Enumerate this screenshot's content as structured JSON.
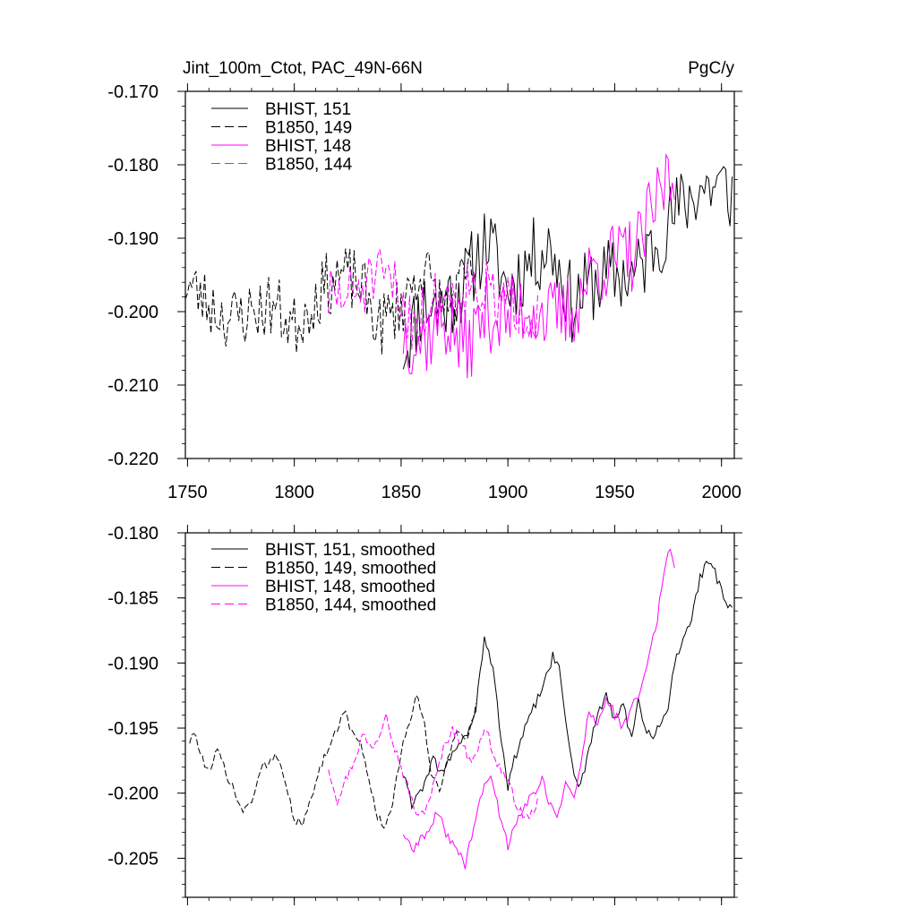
{
  "chart_data": [
    {
      "type": "line",
      "title": "Jint_100m_Ctot, PAC_49N-66N",
      "units": "PgC/y",
      "xlabel": "",
      "ylabel": "",
      "xlim": [
        1749,
        2006
      ],
      "ylim": [
        -0.22,
        -0.17
      ],
      "xticks": [
        1750,
        1800,
        1850,
        1900,
        1950,
        2000
      ],
      "xticklabels": [
        "1750",
        "1800",
        "1850",
        "1900",
        "1950",
        "2000"
      ],
      "yticks": [
        -0.22,
        -0.21,
        -0.2,
        -0.19,
        -0.18,
        -0.17
      ],
      "yticklabels": [
        "-0.220",
        "-0.210",
        "-0.200",
        "-0.190",
        "-0.180",
        "-0.170"
      ],
      "legend": "top-left",
      "series": [
        {
          "name": "BHIST, 151",
          "color": "#000000",
          "dash": "solid",
          "x_start": 1851,
          "x_end": 2005,
          "anchors": [
            [
              1851,
              -0.205
            ],
            [
              1860,
              -0.199
            ],
            [
              1870,
              -0.199
            ],
            [
              1880,
              -0.196
            ],
            [
              1890,
              -0.19
            ],
            [
              1900,
              -0.197
            ],
            [
              1910,
              -0.193
            ],
            [
              1920,
              -0.191
            ],
            [
              1930,
              -0.199
            ],
            [
              1940,
              -0.196
            ],
            [
              1950,
              -0.195
            ],
            [
              1960,
              -0.195
            ],
            [
              1970,
              -0.19
            ],
            [
              1980,
              -0.186
            ],
            [
              1990,
              -0.183
            ],
            [
              2000,
              -0.183
            ],
            [
              2005,
              -0.184
            ]
          ],
          "amp": 0.0055,
          "seed": 11
        },
        {
          "name": "B1850, 149",
          "color": "#000000",
          "dash": "dashed",
          "x_start": 1749,
          "x_end": 1885,
          "anchors": [
            [
              1749,
              -0.196
            ],
            [
              1760,
              -0.199
            ],
            [
              1770,
              -0.201
            ],
            [
              1780,
              -0.2
            ],
            [
              1790,
              -0.199
            ],
            [
              1800,
              -0.202
            ],
            [
              1810,
              -0.198
            ],
            [
              1820,
              -0.195
            ],
            [
              1830,
              -0.196
            ],
            [
              1840,
              -0.202
            ],
            [
              1850,
              -0.199
            ],
            [
              1860,
              -0.194
            ],
            [
              1870,
              -0.2
            ],
            [
              1880,
              -0.196
            ],
            [
              1885,
              -0.194
            ]
          ],
          "amp": 0.0045,
          "seed": 23
        },
        {
          "name": "BHIST, 148",
          "color": "#ff00ff",
          "dash": "solid",
          "x_start": 1851,
          "x_end": 1978,
          "anchors": [
            [
              1851,
              -0.203
            ],
            [
              1860,
              -0.204
            ],
            [
              1870,
              -0.201
            ],
            [
              1880,
              -0.205
            ],
            [
              1890,
              -0.2
            ],
            [
              1900,
              -0.201
            ],
            [
              1910,
              -0.199
            ],
            [
              1920,
              -0.201
            ],
            [
              1930,
              -0.2
            ],
            [
              1940,
              -0.194
            ],
            [
              1950,
              -0.193
            ],
            [
              1960,
              -0.192
            ],
            [
              1970,
              -0.185
            ],
            [
              1975,
              -0.181
            ],
            [
              1978,
              -0.183
            ]
          ],
          "amp": 0.0055,
          "seed": 37
        },
        {
          "name": "B1850, 144",
          "color": "#ff00ff",
          "dash": "dashed",
          "x_start": 1816,
          "x_end": 1914,
          "anchors": [
            [
              1816,
              -0.198
            ],
            [
              1825,
              -0.198
            ],
            [
              1835,
              -0.196
            ],
            [
              1845,
              -0.196
            ],
            [
              1855,
              -0.201
            ],
            [
              1865,
              -0.199
            ],
            [
              1875,
              -0.197
            ],
            [
              1885,
              -0.196
            ],
            [
              1895,
              -0.199
            ],
            [
              1905,
              -0.199
            ],
            [
              1914,
              -0.2
            ]
          ],
          "amp": 0.0045,
          "seed": 51
        }
      ]
    },
    {
      "type": "line",
      "title": "",
      "xlabel": "",
      "ylabel": "",
      "xlim": [
        1749,
        2006
      ],
      "ylim": [
        -0.208,
        -0.18
      ],
      "xticks": [
        1750,
        1800,
        1850,
        1900,
        1950,
        2000
      ],
      "yticks": [
        -0.205,
        -0.2,
        -0.195,
        -0.19,
        -0.185,
        -0.18
      ],
      "yticklabels": [
        "-0.205",
        "-0.200",
        "-0.195",
        "-0.190",
        "-0.185",
        "-0.180"
      ],
      "legend": "top-left",
      "series": [
        {
          "name": "BHIST, 151, smoothed",
          "color": "#000000",
          "dash": "solid",
          "x_start": 1851,
          "x_end": 2005,
          "anchors": [
            [
              1851,
              -0.1985
            ],
            [
              1855,
              -0.2008
            ],
            [
              1860,
              -0.1995
            ],
            [
              1865,
              -0.1975
            ],
            [
              1870,
              -0.1985
            ],
            [
              1875,
              -0.1965
            ],
            [
              1880,
              -0.1958
            ],
            [
              1885,
              -0.1935
            ],
            [
              1889,
              -0.1882
            ],
            [
              1893,
              -0.1905
            ],
            [
              1897,
              -0.196
            ],
            [
              1900,
              -0.1995
            ],
            [
              1903,
              -0.1975
            ],
            [
              1907,
              -0.1955
            ],
            [
              1912,
              -0.1935
            ],
            [
              1916,
              -0.192
            ],
            [
              1921,
              -0.1895
            ],
            [
              1924,
              -0.1905
            ],
            [
              1928,
              -0.1955
            ],
            [
              1931,
              -0.1985
            ],
            [
              1934,
              -0.1995
            ],
            [
              1938,
              -0.1965
            ],
            [
              1942,
              -0.194
            ],
            [
              1946,
              -0.1925
            ],
            [
              1950,
              -0.1945
            ],
            [
              1954,
              -0.193
            ],
            [
              1958,
              -0.196
            ],
            [
              1961,
              -0.193
            ],
            [
              1964,
              -0.195
            ],
            [
              1968,
              -0.1958
            ],
            [
              1972,
              -0.1945
            ],
            [
              1975,
              -0.1935
            ],
            [
              1978,
              -0.19
            ],
            [
              1982,
              -0.188
            ],
            [
              1986,
              -0.1865
            ],
            [
              1990,
              -0.1835
            ],
            [
              1993,
              -0.1825
            ],
            [
              1996,
              -0.1825
            ],
            [
              1999,
              -0.184
            ],
            [
              2002,
              -0.1855
            ],
            [
              2005,
              -0.186
            ]
          ],
          "amp": 0.0004,
          "seed": 61
        },
        {
          "name": "B1850, 149, smoothed",
          "color": "#000000",
          "dash": "dashed",
          "x_start": 1751,
          "x_end": 1885,
          "anchors": [
            [
              1751,
              -0.196
            ],
            [
              1754,
              -0.1955
            ],
            [
              1758,
              -0.198
            ],
            [
              1761,
              -0.1985
            ],
            [
              1764,
              -0.1965
            ],
            [
              1768,
              -0.1985
            ],
            [
              1772,
              -0.2
            ],
            [
              1776,
              -0.2015
            ],
            [
              1780,
              -0.2005
            ],
            [
              1784,
              -0.1985
            ],
            [
              1788,
              -0.1975
            ],
            [
              1792,
              -0.197
            ],
            [
              1796,
              -0.199
            ],
            [
              1800,
              -0.202
            ],
            [
              1804,
              -0.2025
            ],
            [
              1808,
              -0.2005
            ],
            [
              1812,
              -0.198
            ],
            [
              1816,
              -0.1965
            ],
            [
              1820,
              -0.195
            ],
            [
              1823,
              -0.1935
            ],
            [
              1827,
              -0.1955
            ],
            [
              1831,
              -0.196
            ],
            [
              1835,
              -0.199
            ],
            [
              1839,
              -0.202
            ],
            [
              1843,
              -0.2025
            ],
            [
              1847,
              -0.2
            ],
            [
              1850,
              -0.197
            ],
            [
              1853,
              -0.195
            ],
            [
              1857,
              -0.1925
            ],
            [
              1861,
              -0.1945
            ],
            [
              1864,
              -0.1985
            ],
            [
              1868,
              -0.1995
            ],
            [
              1872,
              -0.1975
            ],
            [
              1876,
              -0.195
            ],
            [
              1880,
              -0.196
            ],
            [
              1885,
              -0.1935
            ]
          ],
          "amp": 0.0004,
          "seed": 73
        },
        {
          "name": "BHIST, 148, smoothed",
          "color": "#ff00ff",
          "dash": "solid",
          "x_start": 1851,
          "x_end": 1978,
          "anchors": [
            [
              1851,
              -0.203
            ],
            [
              1855,
              -0.2045
            ],
            [
              1859,
              -0.2035
            ],
            [
              1863,
              -0.203
            ],
            [
              1867,
              -0.2015
            ],
            [
              1871,
              -0.203
            ],
            [
              1875,
              -0.204
            ],
            [
              1880,
              -0.2055
            ],
            [
              1884,
              -0.2025
            ],
            [
              1888,
              -0.2
            ],
            [
              1892,
              -0.1985
            ],
            [
              1896,
              -0.2015
            ],
            [
              1900,
              -0.204
            ],
            [
              1904,
              -0.202
            ],
            [
              1908,
              -0.201
            ],
            [
              1912,
              -0.2
            ],
            [
              1916,
              -0.199
            ],
            [
              1920,
              -0.201
            ],
            [
              1923,
              -0.202
            ],
            [
              1927,
              -0.199
            ],
            [
              1931,
              -0.2005
            ],
            [
              1935,
              -0.197
            ],
            [
              1938,
              -0.1935
            ],
            [
              1942,
              -0.195
            ],
            [
              1946,
              -0.1925
            ],
            [
              1950,
              -0.194
            ],
            [
              1954,
              -0.195
            ],
            [
              1958,
              -0.1935
            ],
            [
              1962,
              -0.192
            ],
            [
              1966,
              -0.1895
            ],
            [
              1970,
              -0.1865
            ],
            [
              1974,
              -0.182
            ],
            [
              1976,
              -0.1815
            ],
            [
              1978,
              -0.1825
            ]
          ],
          "amp": 0.0004,
          "seed": 89
        },
        {
          "name": "B1850, 144, smoothed",
          "color": "#ff00ff",
          "dash": "dashed",
          "x_start": 1816,
          "x_end": 1914,
          "anchors": [
            [
              1816,
              -0.198
            ],
            [
              1820,
              -0.2005
            ],
            [
              1824,
              -0.199
            ],
            [
              1828,
              -0.1975
            ],
            [
              1832,
              -0.1955
            ],
            [
              1836,
              -0.1965
            ],
            [
              1840,
              -0.1955
            ],
            [
              1843,
              -0.1935
            ],
            [
              1846,
              -0.196
            ],
            [
              1850,
              -0.198
            ],
            [
              1854,
              -0.2
            ],
            [
              1858,
              -0.202
            ],
            [
              1862,
              -0.201
            ],
            [
              1866,
              -0.199
            ],
            [
              1870,
              -0.1965
            ],
            [
              1874,
              -0.195
            ],
            [
              1878,
              -0.196
            ],
            [
              1882,
              -0.1975
            ],
            [
              1886,
              -0.1965
            ],
            [
              1890,
              -0.195
            ],
            [
              1894,
              -0.1975
            ],
            [
              1898,
              -0.1985
            ],
            [
              1902,
              -0.2
            ],
            [
              1906,
              -0.2015
            ],
            [
              1910,
              -0.202
            ],
            [
              1914,
              -0.2005
            ]
          ],
          "amp": 0.0004,
          "seed": 97
        }
      ]
    }
  ]
}
